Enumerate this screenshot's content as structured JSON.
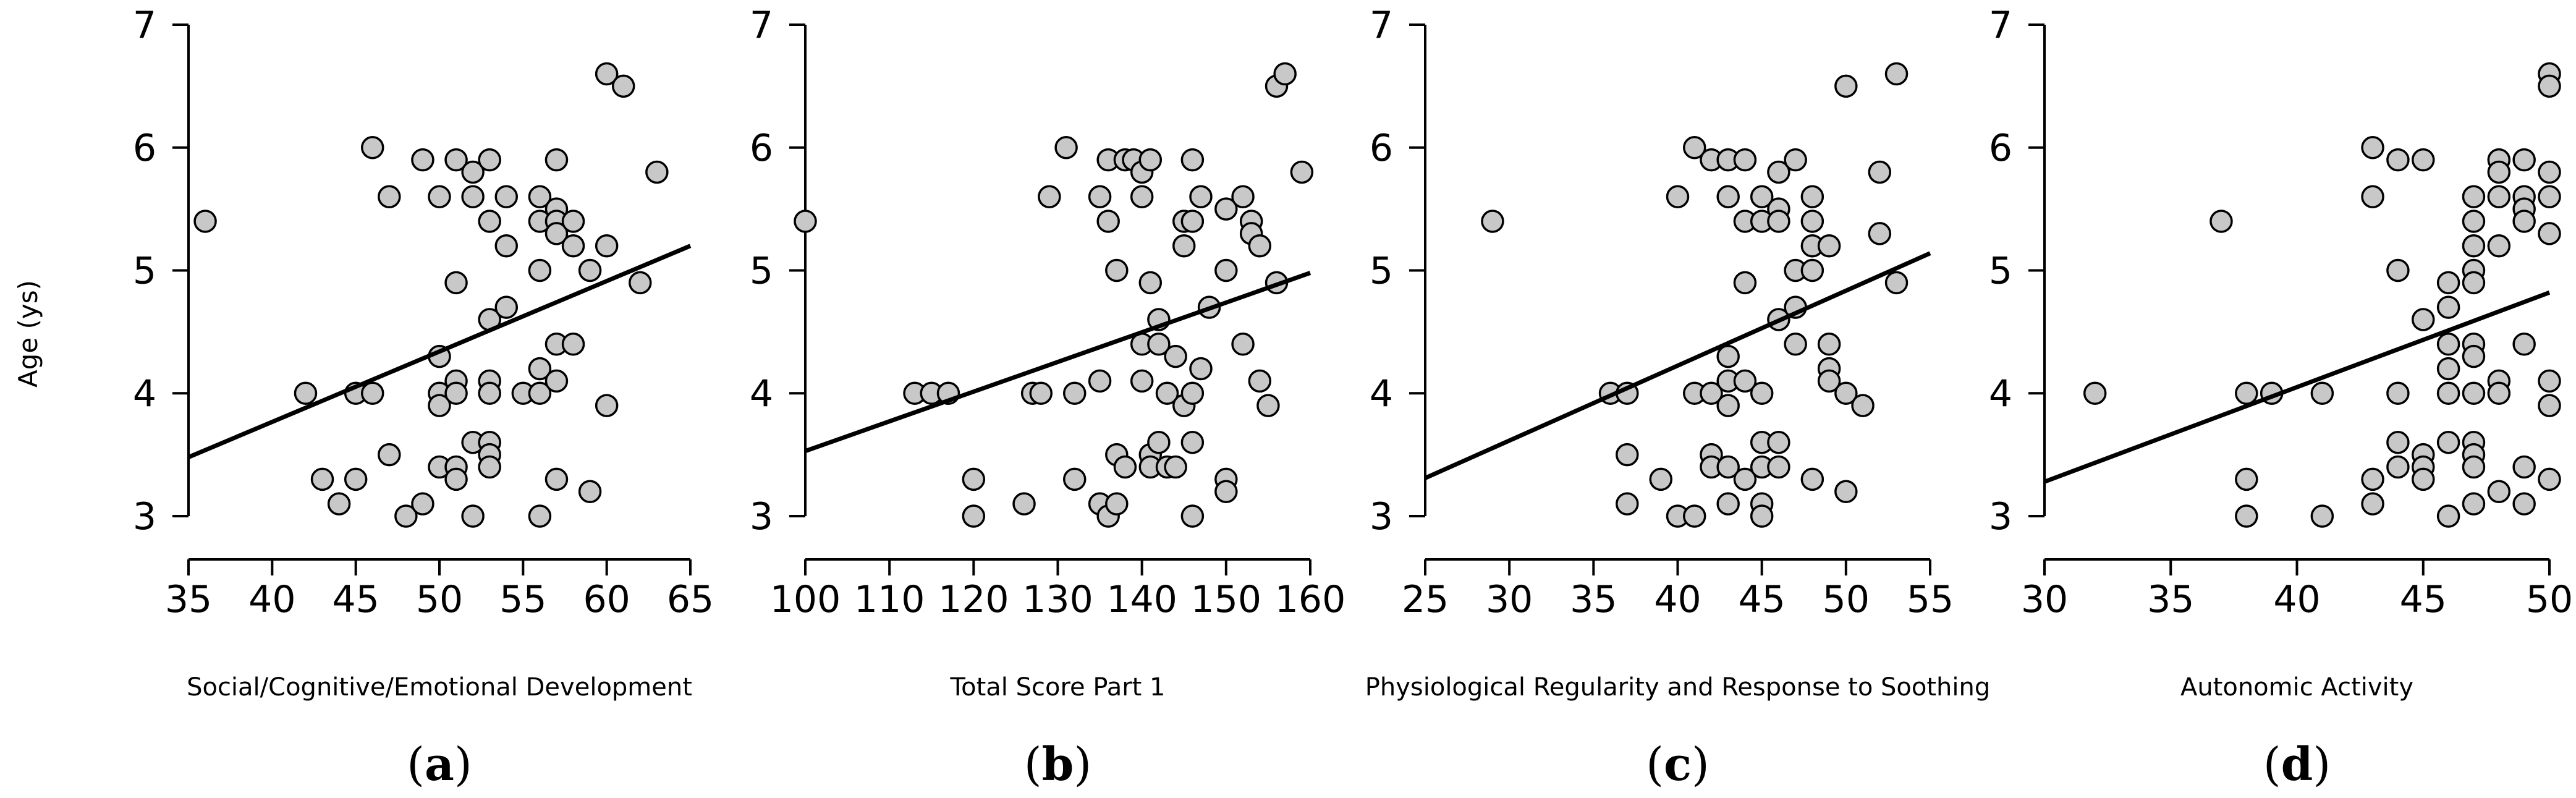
{
  "figure": {
    "ylabel": "Age (ys)"
  },
  "chart_data": [
    {
      "type": "scatter",
      "panel": "a",
      "panel_label": "(a)",
      "xlabel": "Social/Cognitive/Emotional Development",
      "ylabel": "Age (ys)",
      "xlim": [
        35,
        65
      ],
      "ylim": [
        3,
        7
      ],
      "xticks": [
        35,
        40,
        45,
        50,
        55,
        60,
        65
      ],
      "yticks": [
        3,
        4,
        5,
        6,
        7
      ],
      "trendline": {
        "x": [
          35,
          65
        ],
        "y": [
          3.48,
          5.2
        ]
      },
      "points": [
        [
          36,
          5.4
        ],
        [
          42,
          4.0
        ],
        [
          43,
          3.3
        ],
        [
          44,
          3.1
        ],
        [
          45,
          4.0
        ],
        [
          45,
          3.3
        ],
        [
          46,
          6.0
        ],
        [
          46,
          4.0
        ],
        [
          47,
          5.6
        ],
        [
          47,
          3.5
        ],
        [
          48,
          3.0
        ],
        [
          49,
          5.9
        ],
        [
          49,
          3.1
        ],
        [
          50,
          5.6
        ],
        [
          50,
          4.3
        ],
        [
          50,
          4.0
        ],
        [
          50,
          3.9
        ],
        [
          50,
          3.4
        ],
        [
          51,
          5.9
        ],
        [
          51,
          4.9
        ],
        [
          51,
          4.1
        ],
        [
          51,
          4.0
        ],
        [
          51,
          3.4
        ],
        [
          51,
          3.3
        ],
        [
          52,
          5.8
        ],
        [
          52,
          5.6
        ],
        [
          52,
          3.6
        ],
        [
          52,
          3.0
        ],
        [
          53,
          5.9
        ],
        [
          53,
          5.4
        ],
        [
          53,
          4.6
        ],
        [
          53,
          4.1
        ],
        [
          53,
          4.0
        ],
        [
          53,
          3.6
        ],
        [
          53,
          3.5
        ],
        [
          53,
          3.4
        ],
        [
          54,
          5.6
        ],
        [
          54,
          5.2
        ],
        [
          54,
          4.7
        ],
        [
          55,
          4.0
        ],
        [
          56,
          5.6
        ],
        [
          56,
          5.4
        ],
        [
          56,
          5.0
        ],
        [
          56,
          4.2
        ],
        [
          56,
          4.0
        ],
        [
          56,
          3.0
        ],
        [
          57,
          5.9
        ],
        [
          57,
          5.5
        ],
        [
          57,
          5.4
        ],
        [
          57,
          5.3
        ],
        [
          57,
          4.4
        ],
        [
          57,
          4.1
        ],
        [
          57,
          3.3
        ],
        [
          58,
          5.4
        ],
        [
          58,
          5.2
        ],
        [
          58,
          4.4
        ],
        [
          59,
          5.0
        ],
        [
          59,
          3.2
        ],
        [
          60,
          6.6
        ],
        [
          60,
          5.2
        ],
        [
          60,
          3.9
        ],
        [
          61,
          6.5
        ],
        [
          62,
          4.9
        ],
        [
          63,
          5.8
        ]
      ]
    },
    {
      "type": "scatter",
      "panel": "b",
      "panel_label": "(b)",
      "xlabel": "Total Score Part 1",
      "ylabel": "Age (ys)",
      "xlim": [
        100,
        160
      ],
      "ylim": [
        3,
        7
      ],
      "xticks": [
        100,
        110,
        120,
        130,
        140,
        150,
        160
      ],
      "yticks": [
        3,
        4,
        5,
        6,
        7
      ],
      "trendline": {
        "x": [
          100,
          160
        ],
        "y": [
          3.53,
          4.98
        ]
      },
      "points": [
        [
          100,
          5.4
        ],
        [
          113,
          4.0
        ],
        [
          115,
          4.0
        ],
        [
          117,
          4.0
        ],
        [
          120,
          3.3
        ],
        [
          120,
          3.0
        ],
        [
          126,
          3.1
        ],
        [
          127,
          4.0
        ],
        [
          128,
          4.0
        ],
        [
          129,
          5.6
        ],
        [
          131,
          6.0
        ],
        [
          132,
          4.0
        ],
        [
          132,
          3.3
        ],
        [
          135,
          5.6
        ],
        [
          135,
          4.1
        ],
        [
          135,
          3.1
        ],
        [
          136,
          5.9
        ],
        [
          136,
          5.4
        ],
        [
          136,
          3.0
        ],
        [
          137,
          5.0
        ],
        [
          137,
          3.5
        ],
        [
          137,
          3.1
        ],
        [
          138,
          5.9
        ],
        [
          138,
          3.4
        ],
        [
          139,
          5.9
        ],
        [
          140,
          5.8
        ],
        [
          140,
          5.6
        ],
        [
          140,
          4.4
        ],
        [
          140,
          4.1
        ],
        [
          141,
          5.9
        ],
        [
          141,
          4.9
        ],
        [
          141,
          3.5
        ],
        [
          141,
          3.4
        ],
        [
          142,
          4.6
        ],
        [
          142,
          4.4
        ],
        [
          142,
          3.6
        ],
        [
          143,
          4.0
        ],
        [
          143,
          3.4
        ],
        [
          144,
          4.3
        ],
        [
          144,
          3.4
        ],
        [
          145,
          5.4
        ],
        [
          145,
          5.2
        ],
        [
          145,
          3.9
        ],
        [
          146,
          5.9
        ],
        [
          146,
          5.4
        ],
        [
          146,
          4.0
        ],
        [
          146,
          3.6
        ],
        [
          146,
          3.0
        ],
        [
          147,
          5.6
        ],
        [
          147,
          4.2
        ],
        [
          148,
          4.7
        ],
        [
          150,
          5.5
        ],
        [
          150,
          5.0
        ],
        [
          150,
          3.3
        ],
        [
          150,
          3.2
        ],
        [
          152,
          5.6
        ],
        [
          152,
          4.4
        ],
        [
          153,
          5.4
        ],
        [
          153,
          5.3
        ],
        [
          154,
          5.2
        ],
        [
          154,
          4.1
        ],
        [
          155,
          3.9
        ],
        [
          156,
          6.5
        ],
        [
          156,
          4.9
        ],
        [
          157,
          6.6
        ],
        [
          159,
          5.8
        ]
      ]
    },
    {
      "type": "scatter",
      "panel": "c",
      "panel_label": "(c)",
      "xlabel": "Physiological Regularity and Response to Soothing",
      "ylabel": "Age (ys)",
      "xlim": [
        25,
        55
      ],
      "ylim": [
        3,
        7
      ],
      "xticks": [
        25,
        30,
        35,
        40,
        45,
        50,
        55
      ],
      "yticks": [
        3,
        4,
        5,
        6,
        7
      ],
      "trendline": {
        "x": [
          25,
          55
        ],
        "y": [
          3.31,
          5.14
        ]
      },
      "points": [
        [
          29,
          5.4
        ],
        [
          36,
          4.0
        ],
        [
          37,
          4.0
        ],
        [
          37,
          3.5
        ],
        [
          37,
          3.1
        ],
        [
          39,
          3.3
        ],
        [
          40,
          5.6
        ],
        [
          40,
          3.0
        ],
        [
          41,
          6.0
        ],
        [
          41,
          4.0
        ],
        [
          41,
          3.0
        ],
        [
          42,
          5.9
        ],
        [
          42,
          4.0
        ],
        [
          42,
          3.5
        ],
        [
          42,
          3.4
        ],
        [
          43,
          5.9
        ],
        [
          43,
          5.6
        ],
        [
          43,
          4.3
        ],
        [
          43,
          4.1
        ],
        [
          43,
          3.9
        ],
        [
          43,
          3.4
        ],
        [
          43,
          3.1
        ],
        [
          44,
          5.9
        ],
        [
          44,
          5.4
        ],
        [
          44,
          4.9
        ],
        [
          44,
          4.1
        ],
        [
          44,
          3.3
        ],
        [
          45,
          5.6
        ],
        [
          45,
          5.4
        ],
        [
          45,
          4.0
        ],
        [
          45,
          3.6
        ],
        [
          45,
          3.4
        ],
        [
          45,
          3.1
        ],
        [
          45,
          3.0
        ],
        [
          46,
          5.8
        ],
        [
          46,
          5.5
        ],
        [
          46,
          5.4
        ],
        [
          46,
          4.6
        ],
        [
          46,
          3.6
        ],
        [
          46,
          3.4
        ],
        [
          47,
          5.9
        ],
        [
          47,
          5.0
        ],
        [
          47,
          4.7
        ],
        [
          47,
          4.4
        ],
        [
          48,
          5.6
        ],
        [
          48,
          5.4
        ],
        [
          48,
          5.2
        ],
        [
          48,
          5.0
        ],
        [
          48,
          3.3
        ],
        [
          49,
          5.2
        ],
        [
          49,
          4.4
        ],
        [
          49,
          4.2
        ],
        [
          49,
          4.1
        ],
        [
          50,
          6.5
        ],
        [
          50,
          4.0
        ],
        [
          50,
          3.2
        ],
        [
          51,
          3.9
        ],
        [
          52,
          5.8
        ],
        [
          52,
          5.3
        ],
        [
          53,
          6.6
        ],
        [
          53,
          4.9
        ]
      ]
    },
    {
      "type": "scatter",
      "panel": "d",
      "panel_label": "(d)",
      "xlabel": "Autonomic Activity",
      "ylabel": "Age (ys)",
      "xlim": [
        30,
        50
      ],
      "ylim": [
        3,
        7
      ],
      "xticks": [
        30,
        35,
        40,
        45,
        50
      ],
      "yticks": [
        3,
        4,
        5,
        6,
        7
      ],
      "trendline": {
        "x": [
          30,
          50
        ],
        "y": [
          3.28,
          4.82
        ]
      },
      "points": [
        [
          32,
          4.0
        ],
        [
          37,
          5.4
        ],
        [
          38,
          4.0
        ],
        [
          38,
          3.3
        ],
        [
          38,
          3.0
        ],
        [
          39,
          4.0
        ],
        [
          41,
          4.0
        ],
        [
          41,
          3.0
        ],
        [
          43,
          6.0
        ],
        [
          43,
          5.6
        ],
        [
          43,
          3.3
        ],
        [
          43,
          3.1
        ],
        [
          44,
          5.9
        ],
        [
          44,
          5.0
        ],
        [
          44,
          4.0
        ],
        [
          44,
          3.6
        ],
        [
          44,
          3.4
        ],
        [
          45,
          5.9
        ],
        [
          45,
          4.6
        ],
        [
          45,
          3.5
        ],
        [
          45,
          3.4
        ],
        [
          45,
          3.3
        ],
        [
          46,
          4.9
        ],
        [
          46,
          4.7
        ],
        [
          46,
          4.4
        ],
        [
          46,
          4.2
        ],
        [
          46,
          4.0
        ],
        [
          46,
          3.6
        ],
        [
          46,
          3.0
        ],
        [
          47,
          5.6
        ],
        [
          47,
          5.4
        ],
        [
          47,
          5.2
        ],
        [
          47,
          5.0
        ],
        [
          47,
          4.9
        ],
        [
          47,
          4.4
        ],
        [
          47,
          4.3
        ],
        [
          47,
          4.0
        ],
        [
          47,
          3.6
        ],
        [
          47,
          3.5
        ],
        [
          47,
          3.4
        ],
        [
          47,
          3.1
        ],
        [
          48,
          5.9
        ],
        [
          48,
          5.8
        ],
        [
          48,
          5.6
        ],
        [
          48,
          5.2
        ],
        [
          48,
          4.1
        ],
        [
          48,
          4.0
        ],
        [
          48,
          3.2
        ],
        [
          49,
          5.9
        ],
        [
          49,
          5.6
        ],
        [
          49,
          5.5
        ],
        [
          49,
          5.4
        ],
        [
          49,
          4.4
        ],
        [
          49,
          3.4
        ],
        [
          49,
          3.1
        ],
        [
          50,
          6.6
        ],
        [
          50,
          6.5
        ],
        [
          50,
          5.8
        ],
        [
          50,
          5.6
        ],
        [
          50,
          5.3
        ],
        [
          50,
          4.1
        ],
        [
          50,
          3.9
        ],
        [
          50,
          3.3
        ]
      ]
    }
  ]
}
